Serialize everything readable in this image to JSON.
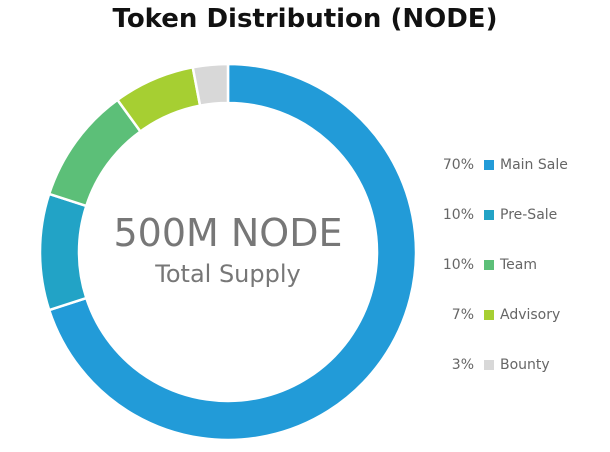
{
  "chart_data": {
    "type": "pie",
    "style": "donut",
    "title": "Token Distribution (NODE)",
    "center_text": [
      "500M NODE",
      "Total Supply"
    ],
    "legend_position": "right",
    "slices": [
      {
        "label": "Main Sale",
        "percent_label": "70%",
        "value": 70,
        "color": "#229bd8"
      },
      {
        "label": "Pre-Sale",
        "percent_label": "10%",
        "value": 10,
        "color": "#22a3c6"
      },
      {
        "label": "Team",
        "percent_label": "10%",
        "value": 10,
        "color": "#5cbf78"
      },
      {
        "label": "Advisory",
        "percent_label": "7%",
        "value": 7,
        "color": "#a6cf32"
      },
      {
        "label": "Bounty",
        "percent_label": "3%",
        "value": 3,
        "color": "#d8d8d8"
      }
    ]
  }
}
